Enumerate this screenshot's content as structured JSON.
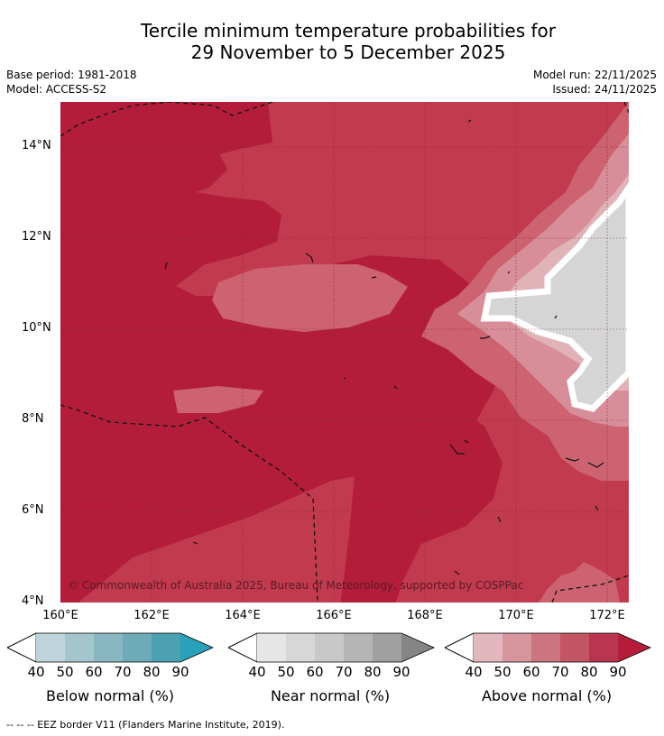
{
  "title_line1": "Tercile minimum temperature probabilities for",
  "title_line2": "29 November to 5 December 2025",
  "meta": {
    "base_period": "Base period: 1981-2018",
    "model": "Model: ACCESS-S2",
    "model_run": "Model run: 22/11/2025",
    "issued": "Issued: 24/11/2025"
  },
  "map": {
    "copyright": "© Commonwealth of Australia 2025, Bureau of Meteorology, supported by COSPPac",
    "lat_labels": [
      "14°N",
      "12°N",
      "10°N",
      "8°N",
      "6°N",
      "4°N"
    ],
    "lon_labels": [
      "160°E",
      "162°E",
      "164°E",
      "166°E",
      "168°E",
      "170°E",
      "172°E"
    ],
    "lon_range": [
      160,
      172.5
    ],
    "lat_range": [
      4,
      15
    ],
    "colors": {
      "above_90": "#b31d3a",
      "above_80": "#c23a4e",
      "above_70": "#cd6271",
      "above_60": "#d88e98",
      "above_50": "#e0b3b8",
      "near_normal": "#d5d5d5"
    }
  },
  "colorbars": [
    {
      "name": "below-normal",
      "label": "Below normal (%)",
      "ticks": [
        "40",
        "50",
        "60",
        "70",
        "80",
        "90"
      ],
      "colors": [
        "#bed4da",
        "#a3c5cb",
        "#88b6c1",
        "#6eaab8",
        "#4a9fb1",
        "#2aa0b9"
      ]
    },
    {
      "name": "near-normal",
      "label": "Near normal (%)",
      "ticks": [
        "40",
        "50",
        "60",
        "70",
        "80",
        "90"
      ],
      "colors": [
        "#e6e6e6",
        "#d7d7d7",
        "#c8c8c8",
        "#b5b5b5",
        "#a0a0a0",
        "#858585"
      ]
    },
    {
      "name": "above-normal",
      "label": "Above normal (%)",
      "ticks": [
        "40",
        "50",
        "60",
        "70",
        "80",
        "90"
      ],
      "colors": [
        "#e2b7bd",
        "#d7959e",
        "#cc747f",
        "#c45565",
        "#ba3550",
        "#b31d3a"
      ]
    }
  ],
  "footnote": "--  --  -- EEZ border V11 (Flanders Marine Institute, 2019)."
}
